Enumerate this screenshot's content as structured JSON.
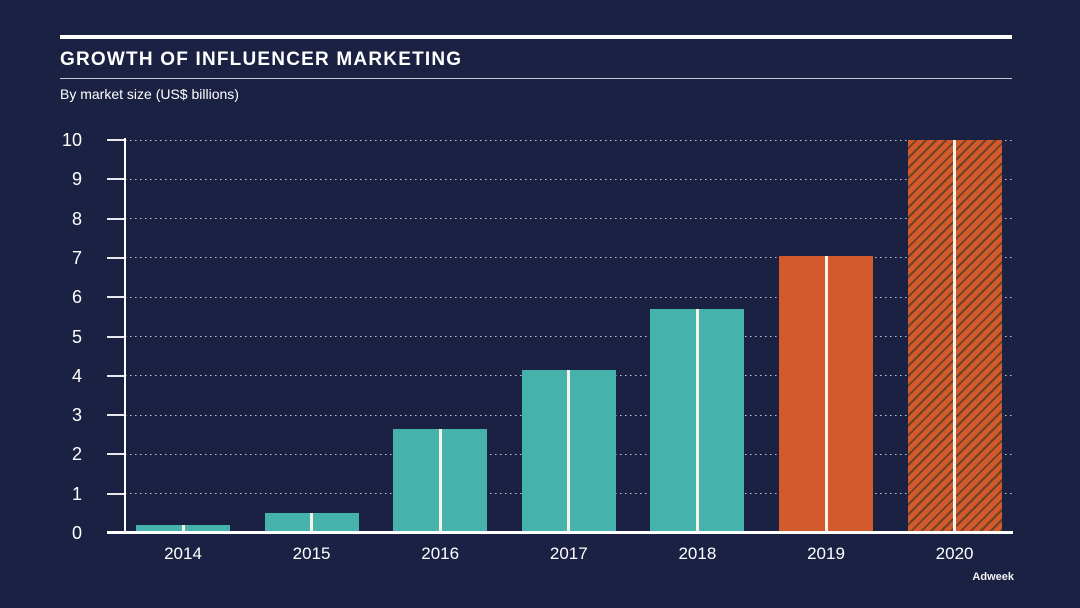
{
  "header": {
    "title": "GROWTH OF INFLUENCER MARKETING",
    "subtitle": "By market size (US$ billions)"
  },
  "chart_data": {
    "type": "bar",
    "title": "GROWTH OF INFLUENCER MARKETING",
    "subtitle": "By market size (US$ billions)",
    "categories": [
      "2014",
      "2015",
      "2016",
      "2017",
      "2018",
      "2019",
      "2020"
    ],
    "values": [
      0.2,
      0.5,
      2.65,
      4.15,
      5.7,
      7.05,
      10
    ],
    "bar_styles": [
      "solid-teal",
      "solid-teal",
      "solid-teal",
      "solid-teal",
      "solid-teal",
      "solid-orange",
      "hatched-orange"
    ],
    "xlabel": "",
    "ylabel": "US$ billions",
    "ylim": [
      0,
      10
    ],
    "yticks": [
      0,
      1,
      2,
      3,
      4,
      5,
      6,
      7,
      8,
      9,
      10
    ],
    "grid": "horizontal-dotted",
    "legend": "none",
    "notes": "2020 bar drawn with diagonal hatch pattern (projected value); each bar has a thin vertical divider line at its center",
    "colors": {
      "background": "#1b2143",
      "teal": "#45b2ab",
      "orange": "#d25a2d",
      "hatch_stripe": "#6f4225",
      "bar_divider": "#f6f2e8",
      "axis": "#ffffff",
      "gridline": "rgba(255,255,255,0.75)"
    }
  },
  "footer": {
    "credit": "Adweek"
  }
}
